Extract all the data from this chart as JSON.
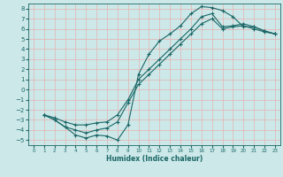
{
  "xlabel": "Humidex (Indice chaleur)",
  "background_color": "#cce8e8",
  "grid_color": "#e8b0b0",
  "line_color": "#1a6666",
  "xlim": [
    -0.5,
    23.5
  ],
  "ylim": [
    -5.5,
    8.5
  ],
  "xticks": [
    0,
    1,
    2,
    3,
    4,
    5,
    6,
    7,
    8,
    9,
    10,
    11,
    12,
    13,
    14,
    15,
    16,
    17,
    18,
    19,
    20,
    21,
    22,
    23
  ],
  "yticks": [
    -5,
    -4,
    -3,
    -2,
    -1,
    0,
    1,
    2,
    3,
    4,
    5,
    6,
    7,
    8
  ],
  "line1_x": [
    1,
    2,
    3,
    4,
    5,
    6,
    7,
    8,
    9,
    10,
    11,
    12,
    13,
    14,
    15,
    16,
    17,
    18,
    19,
    20,
    21,
    22,
    23
  ],
  "line1_y": [
    -2.5,
    -3.0,
    -3.7,
    -4.5,
    -4.8,
    -4.5,
    -4.6,
    -5.0,
    -3.5,
    1.5,
    3.5,
    4.8,
    5.5,
    6.3,
    7.5,
    8.2,
    8.1,
    7.8,
    7.2,
    6.2,
    6.2,
    5.8,
    5.5
  ],
  "line2_x": [
    1,
    2,
    3,
    4,
    5,
    6,
    7,
    8,
    9,
    10,
    11,
    12,
    13,
    14,
    15,
    16,
    17,
    18,
    19,
    20,
    21,
    22,
    23
  ],
  "line2_y": [
    -2.5,
    -3.0,
    -3.7,
    -4.0,
    -4.3,
    -4.0,
    -3.8,
    -3.2,
    -1.3,
    0.5,
    1.5,
    2.5,
    3.5,
    4.5,
    5.5,
    6.5,
    7.0,
    6.0,
    6.2,
    6.3,
    6.0,
    5.7,
    5.5
  ],
  "line3_x": [
    1,
    2,
    3,
    4,
    5,
    6,
    7,
    8,
    9,
    10,
    11,
    12,
    13,
    14,
    15,
    16,
    17,
    18,
    19,
    20,
    21,
    22,
    23
  ],
  "line3_y": [
    -2.5,
    -2.8,
    -3.2,
    -3.5,
    -3.5,
    -3.3,
    -3.2,
    -2.5,
    -1.0,
    1.0,
    2.0,
    3.0,
    4.0,
    5.0,
    6.0,
    7.2,
    7.5,
    6.2,
    6.3,
    6.5,
    6.2,
    5.8,
    5.5
  ]
}
